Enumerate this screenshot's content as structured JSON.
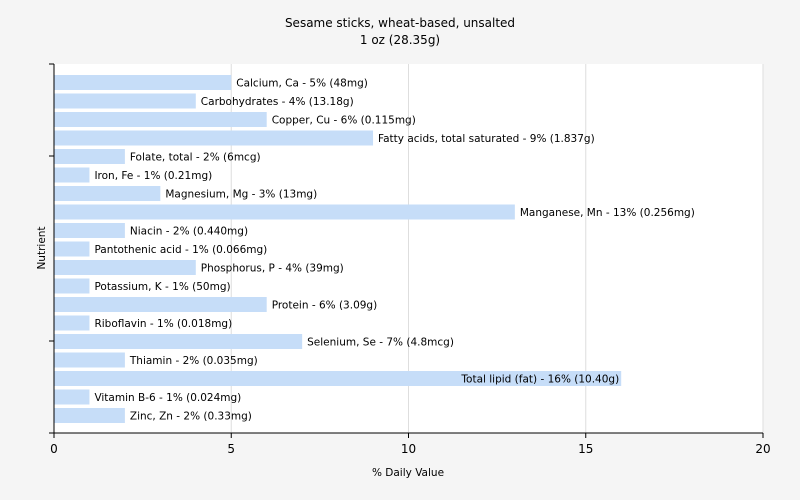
{
  "chart_data": {
    "type": "bar",
    "orientation": "horizontal",
    "title": "Sesame sticks, wheat-based, unsalted",
    "subtitle": "1 oz (28.35g)",
    "xlabel": "% Daily Value",
    "ylabel": "Nutrient",
    "xlim": [
      0,
      20
    ],
    "xticks": [
      0,
      5,
      10,
      15,
      20
    ],
    "grid": true,
    "colors": {
      "bar": "#c6ddf8",
      "background": "#f5f5f5",
      "plot_background": "#ffffff",
      "grid": "#dedede",
      "axis": "#000000"
    },
    "bars": [
      {
        "label": "Calcium, Ca - 5% (48mg)",
        "value": 5
      },
      {
        "label": "Carbohydrates - 4% (13.18g)",
        "value": 4
      },
      {
        "label": "Copper, Cu - 6% (0.115mg)",
        "value": 6
      },
      {
        "label": "Fatty acids, total saturated - 9% (1.837g)",
        "value": 9
      },
      {
        "label": "Folate, total - 2% (6mcg)",
        "value": 2
      },
      {
        "label": "Iron, Fe - 1% (0.21mg)",
        "value": 1
      },
      {
        "label": "Magnesium, Mg - 3% (13mg)",
        "value": 3
      },
      {
        "label": "Manganese, Mn - 13% (0.256mg)",
        "value": 13
      },
      {
        "label": "Niacin - 2% (0.440mg)",
        "value": 2
      },
      {
        "label": "Pantothenic acid - 1% (0.066mg)",
        "value": 1
      },
      {
        "label": "Phosphorus, P - 4% (39mg)",
        "value": 4
      },
      {
        "label": "Potassium, K - 1% (50mg)",
        "value": 1
      },
      {
        "label": "Protein - 6% (3.09g)",
        "value": 6
      },
      {
        "label": "Riboflavin - 1% (0.018mg)",
        "value": 1
      },
      {
        "label": "Selenium, Se - 7% (4.8mcg)",
        "value": 7
      },
      {
        "label": "Thiamin - 2% (0.035mg)",
        "value": 2
      },
      {
        "label": "Total lipid (fat) - 16% (10.40g)",
        "value": 16,
        "label_inside": true
      },
      {
        "label": "Vitamin B-6 - 1% (0.024mg)",
        "value": 1
      },
      {
        "label": "Zinc, Zn - 2% (0.33mg)",
        "value": 2
      }
    ]
  }
}
